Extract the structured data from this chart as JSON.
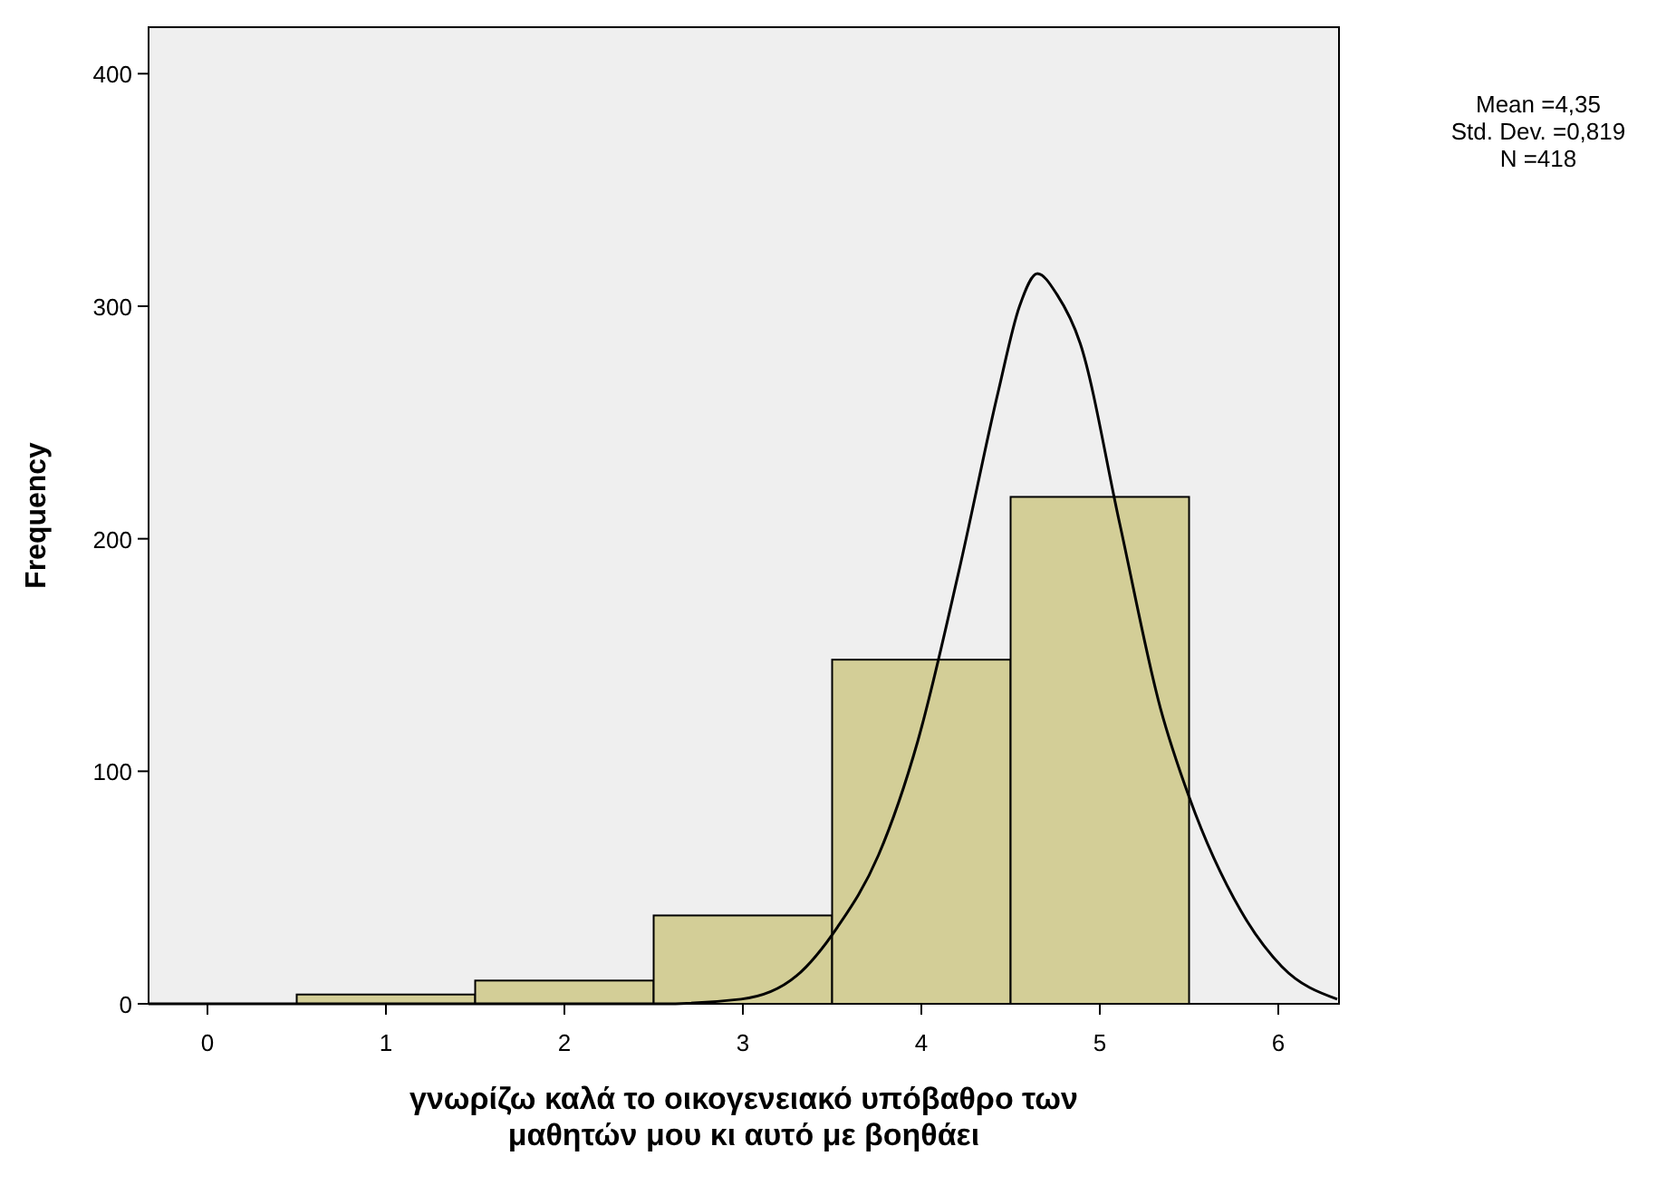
{
  "chart_data": {
    "type": "histogram",
    "xlabel": "γνωρίζω καλά το οικογενειακό υπόβαθρο των\nμαθητών μου κι αυτό με βοηθάει",
    "ylabel": "Frequency",
    "bins": [
      0.5,
      1.5,
      2.5,
      3.5,
      4.5,
      5.5
    ],
    "series": [
      {
        "color": "#d3ce97",
        "values": [
          4,
          10,
          38,
          148,
          218
        ]
      },
      {
        "type": "line",
        "color": "#000000",
        "x": [
          -0.33,
          2.53,
          2.99,
          3.3,
          3.53,
          3.76,
          3.98,
          4.21,
          4.43,
          4.55,
          4.65,
          4.76,
          4.89,
          5.11,
          5.34,
          5.5,
          5.79,
          6.02,
          6.33
        ],
        "values": [
          0,
          0,
          2,
          12,
          33,
          64,
          113,
          186,
          263,
          300,
          314,
          305,
          284,
          207,
          127,
          89,
          40,
          16,
          2
        ]
      }
    ],
    "xlim": [
      -0.33,
      6.34
    ],
    "ylim": [
      0,
      420
    ],
    "xticks": [
      0,
      1,
      2,
      3,
      4,
      5,
      6
    ],
    "yticks": [
      0,
      100,
      200,
      300,
      400
    ],
    "annotations": [
      "Mean =4,35",
      "Std. Dev. =0,819",
      "N =418"
    ]
  }
}
